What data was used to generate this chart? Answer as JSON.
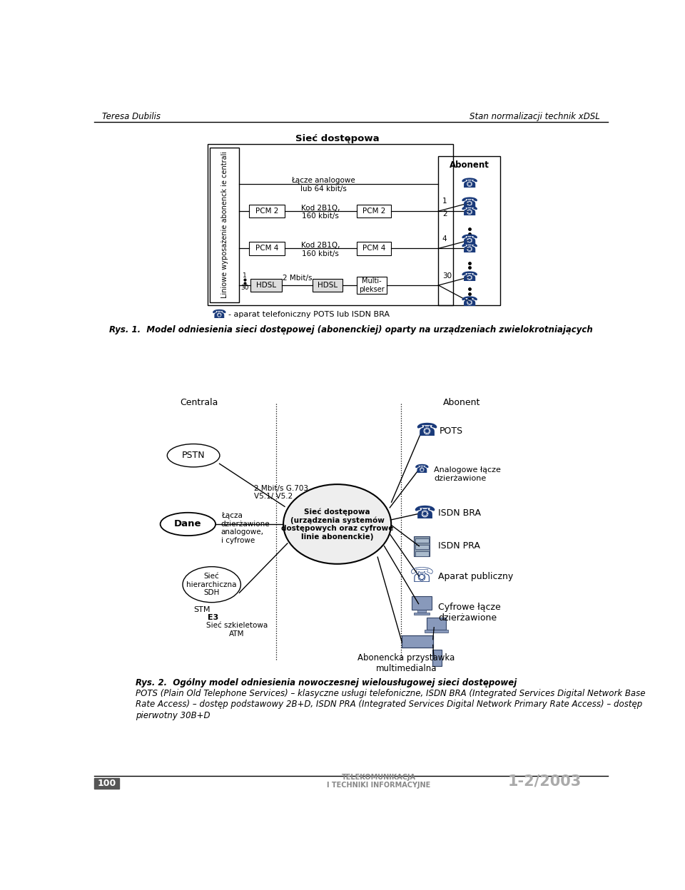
{
  "header_left": "Teresa Dubilis",
  "header_right": "Stan normalizacji technik xDSL",
  "fig1_title": "Sieć dostępowa",
  "fig1_abonent": "Abonent",
  "fig1_liniowe": "Liniowe wyposażenie abonenck ie centrali",
  "fig1_pcm2_left": "PCM 2",
  "fig1_pcm2_right": "PCM 2",
  "fig1_pcm4_left": "PCM 4",
  "fig1_pcm4_right": "PCM 4",
  "fig1_hdsl_left": "HDSL",
  "fig1_hdsl_right": "HDSL",
  "fig1_multiplekser": "Multi-\nplekser",
  "fig1_lacze": "Łącze analogowe\nlub 64 kbit/s",
  "fig1_kod2b1q_1": "Kod 2B1Q,\n160 kbit/s",
  "fig1_kod2b1q_2": "Kod 2B1Q,\n160 kbit/s",
  "fig1_2mbit": "2 Mbit/s",
  "fig1_phone_legend": "- aparat telefoniczny POTS lub ISDN BRA",
  "rys1_caption": "Rys. 1.  Model odniesienia sieci dostępowej (abonenckiej) oparty na urządzeniach zwielokrotniających",
  "fig2_centrala": "Centrala",
  "fig2_abonent": "Abonent",
  "fig2_pstn": "PSTN",
  "fig2_dane": "Dane",
  "fig2_stm": "STM",
  "fig2_siec_hier": "Sieć\nhierarchiczna\nSDH",
  "fig2_siec_szkiel": "Sieć szkieletowa\nATM",
  "fig2_e3": "E3",
  "fig2_2mbit": "2 Mbit/s G.703\nV5.1/ V5.2",
  "fig2_lacza": "Łącza\ndzierżawione\nanalogowe,\ni cyfrowe",
  "fig2_siec_dostepowa": "Sieć dostępowa\n(urządzenia systemów\ndostępowych oraz cyfrowe\nlinie abonenckie)",
  "fig2_pots": "POTS",
  "fig2_isdn_bra": "ISDN BRA",
  "fig2_isdn_pra": "ISDN PRA",
  "fig2_aparat": "Aparat publiczny",
  "fig2_cyfrowe": "Cyfrowe łącze\ndzierżawione",
  "fig2_analogowe": "Analogowe łącze\ndzierżawione",
  "fig2_abonencka": "Abonencka przystawka\nmultimedialna",
  "rys2_caption1": "Rys. 2.  Ogólny model odniesienia nowoczesnej wielousługowej sieci dostępowej",
  "rys2_caption2": "POTS (Plain Old Telephone Services) – klasyczne usługi telefoniczne, ISDN BRA (Integrated Services Digital Network Base",
  "rys2_caption3": "Rate Access) – dostęp podstawowy 2B+D, ISDN PRA (Integrated Services Digital Network Primary Rate Access) – dostęp",
  "rys2_caption4": "pierwotny 30B+D",
  "footer_page": "100",
  "footer_journal": "TELEKOMUNIKACJA\nI TECHNIKI INFORMACYJNE",
  "footer_issue": "1-2/2003",
  "blue": "#1a3a7a"
}
